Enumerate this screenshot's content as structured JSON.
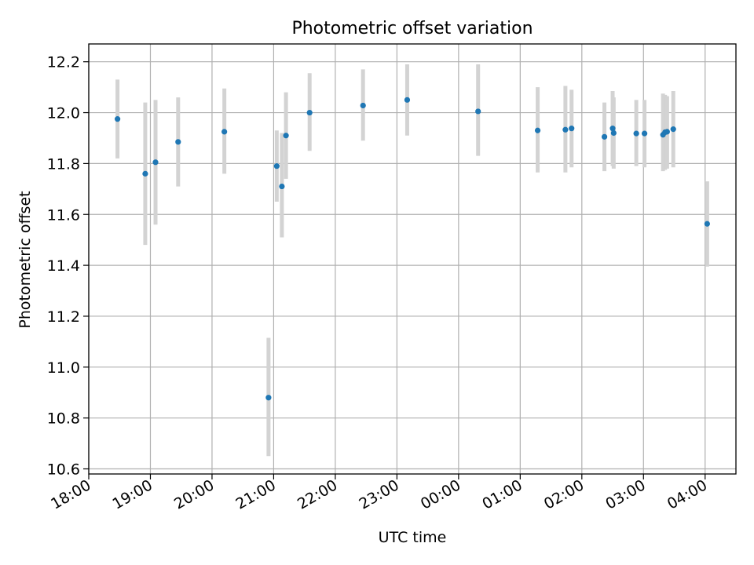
{
  "chart_data": {
    "type": "scatter",
    "title": "Photometric offset variation",
    "xlabel": "UTC time",
    "ylabel": "Photometric offset",
    "xlim": [
      "18:00",
      "04:30"
    ],
    "ylim": [
      10.58,
      12.27
    ],
    "grid": true,
    "x_ticks": [
      "18:00",
      "19:00",
      "20:00",
      "21:00",
      "22:00",
      "23:00",
      "00:00",
      "01:00",
      "02:00",
      "03:00",
      "04:00"
    ],
    "y_ticks": [
      "10.6",
      "10.8",
      "11.0",
      "11.2",
      "11.4",
      "11.6",
      "11.8",
      "12.0",
      "12.2"
    ],
    "marker_color": "#1f77b4",
    "errorbar_color": "#d3d3d3",
    "points": [
      {
        "t": "18:28",
        "y": 11.975,
        "lo": 11.82,
        "hi": 12.13
      },
      {
        "t": "18:55",
        "y": 11.76,
        "lo": 11.48,
        "hi": 12.04
      },
      {
        "t": "19:05",
        "y": 11.805,
        "lo": 11.56,
        "hi": 12.05
      },
      {
        "t": "19:27",
        "y": 11.885,
        "lo": 11.71,
        "hi": 12.06
      },
      {
        "t": "20:12",
        "y": 11.925,
        "lo": 11.76,
        "hi": 12.095
      },
      {
        "t": "20:55",
        "y": 10.88,
        "lo": 10.65,
        "hi": 11.115
      },
      {
        "t": "21:03",
        "y": 11.79,
        "lo": 11.65,
        "hi": 11.93
      },
      {
        "t": "21:08",
        "y": 11.71,
        "lo": 11.51,
        "hi": 11.92
      },
      {
        "t": "21:12",
        "y": 11.91,
        "lo": 11.74,
        "hi": 12.08
      },
      {
        "t": "21:35",
        "y": 12.0,
        "lo": 11.85,
        "hi": 12.155
      },
      {
        "t": "22:27",
        "y": 12.028,
        "lo": 11.89,
        "hi": 12.17
      },
      {
        "t": "23:10",
        "y": 12.05,
        "lo": 11.91,
        "hi": 12.19
      },
      {
        "t": "00:19",
        "y": 12.005,
        "lo": 11.83,
        "hi": 12.19
      },
      {
        "t": "01:17",
        "y": 11.93,
        "lo": 11.765,
        "hi": 12.1
      },
      {
        "t": "01:44",
        "y": 11.933,
        "lo": 11.765,
        "hi": 12.105
      },
      {
        "t": "01:50",
        "y": 11.938,
        "lo": 11.785,
        "hi": 12.09
      },
      {
        "t": "02:22",
        "y": 11.905,
        "lo": 11.77,
        "hi": 12.04
      },
      {
        "t": "02:30",
        "y": 11.938,
        "lo": 11.79,
        "hi": 12.085
      },
      {
        "t": "02:31",
        "y": 11.92,
        "lo": 11.78,
        "hi": 12.06
      },
      {
        "t": "02:53",
        "y": 11.918,
        "lo": 11.79,
        "hi": 12.05
      },
      {
        "t": "03:01",
        "y": 11.918,
        "lo": 11.785,
        "hi": 12.05
      },
      {
        "t": "03:19",
        "y": 11.913,
        "lo": 11.77,
        "hi": 12.075
      },
      {
        "t": "03:21",
        "y": 11.923,
        "lo": 11.775,
        "hi": 12.07
      },
      {
        "t": "03:23",
        "y": 11.925,
        "lo": 11.78,
        "hi": 12.065
      },
      {
        "t": "03:29",
        "y": 11.935,
        "lo": 11.785,
        "hi": 12.085
      },
      {
        "t": "04:02",
        "y": 11.563,
        "lo": 11.395,
        "hi": 11.73
      }
    ]
  }
}
